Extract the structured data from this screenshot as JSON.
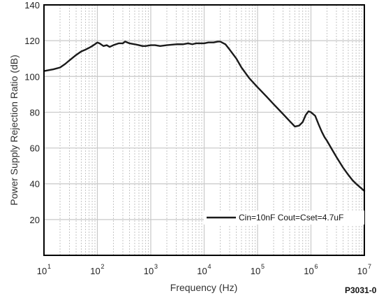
{
  "chart_data": {
    "type": "line",
    "xlabel": "Frequency (Hz)",
    "ylabel": "Power Supply Rejection Ratio (dB)",
    "xscale": "log",
    "xlim": [
      10,
      10000000
    ],
    "ylim": [
      0,
      140
    ],
    "x_ticks": [
      {
        "value": 10,
        "base": "10",
        "exp": "1"
      },
      {
        "value": 100,
        "base": "10",
        "exp": "2"
      },
      {
        "value": 1000,
        "base": "10",
        "exp": "3"
      },
      {
        "value": 10000,
        "base": "10",
        "exp": "4"
      },
      {
        "value": 100000,
        "base": "10",
        "exp": "5"
      },
      {
        "value": 1000000,
        "base": "10",
        "exp": "6"
      },
      {
        "value": 10000000,
        "base": "10",
        "exp": "7"
      }
    ],
    "y_ticks": [
      20,
      40,
      60,
      80,
      100,
      120,
      140
    ],
    "grid": true,
    "legend_position": "bottom-right",
    "series": [
      {
        "name": "Cin=10nF Cout=Cset=4.7uF",
        "color": "#1a1a1a",
        "x": [
          10,
          15,
          20,
          25,
          30,
          40,
          50,
          60,
          70,
          80,
          90,
          100,
          110,
          130,
          150,
          170,
          200,
          250,
          300,
          330,
          400,
          500,
          600,
          700,
          800,
          1000,
          1200,
          1500,
          2000,
          3000,
          4000,
          5000,
          6000,
          7000,
          8000,
          10000,
          12000,
          15000,
          18000,
          20000,
          25000,
          30000,
          40000,
          50000,
          70000,
          100000,
          150000,
          200000,
          300000,
          400000,
          500000,
          600000,
          700000,
          800000,
          900000,
          1000000,
          1200000,
          1400000,
          1600000,
          1800000,
          2000000,
          2500000,
          3000000,
          4000000,
          5000000,
          6000000,
          7000000,
          8000000,
          10000000
        ],
        "y": [
          103,
          104,
          105,
          107,
          109,
          112,
          114,
          115,
          116,
          117,
          118,
          119,
          118.5,
          117,
          117.5,
          116.5,
          117.5,
          118.5,
          118.5,
          119.5,
          118.5,
          118,
          117.5,
          117,
          117,
          117.5,
          117.5,
          117,
          117.5,
          118,
          118,
          118.5,
          118,
          118.5,
          118.5,
          118.5,
          119,
          119,
          119.5,
          119.5,
          118,
          115,
          110,
          105,
          99,
          94,
          88.5,
          84.5,
          79,
          75,
          72,
          72.5,
          74.5,
          78.5,
          80.5,
          80,
          78,
          73,
          69,
          66,
          64,
          59,
          55,
          49,
          45,
          42,
          40,
          38.5,
          36
        ]
      }
    ],
    "annotations": [
      "P3031-0"
    ]
  }
}
